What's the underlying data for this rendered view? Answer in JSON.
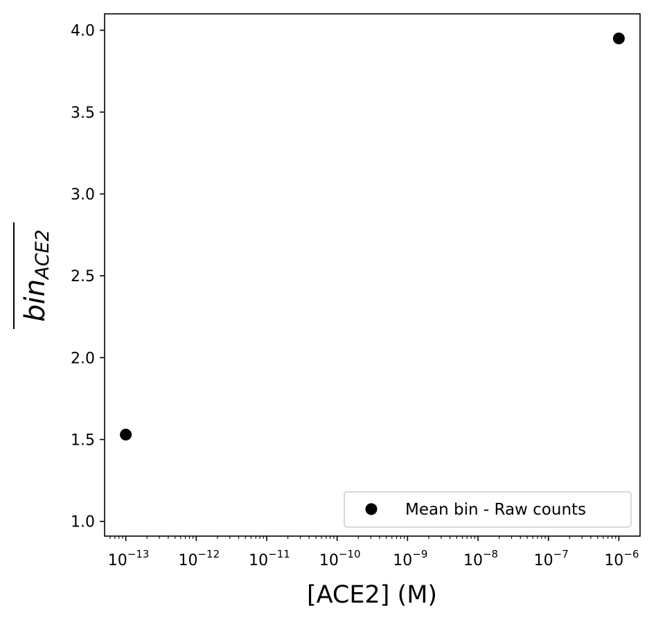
{
  "chart_data": {
    "type": "scatter",
    "title": "",
    "xlabel": "[ACE2] (M)",
    "ylabel": {
      "base": "bin",
      "subscript": "ACE2",
      "overline": true
    },
    "x_scale": "log",
    "x_ticks": [
      {
        "base": "10",
        "exp": "−13",
        "value": 1e-13
      },
      {
        "base": "10",
        "exp": "−12",
        "value": 1e-12
      },
      {
        "base": "10",
        "exp": "−11",
        "value": 1e-11
      },
      {
        "base": "10",
        "exp": "−10",
        "value": 1e-10
      },
      {
        "base": "10",
        "exp": "−9",
        "value": 1e-09
      },
      {
        "base": "10",
        "exp": "−8",
        "value": 1e-08
      },
      {
        "base": "10",
        "exp": "−7",
        "value": 1e-07
      },
      {
        "base": "10",
        "exp": "−6",
        "value": 1e-06
      }
    ],
    "xlim": [
      5e-14,
      2e-06
    ],
    "y_ticks": [
      "1.0",
      "1.5",
      "2.0",
      "2.5",
      "3.0",
      "3.5",
      "4.0"
    ],
    "ylim": [
      0.91,
      4.1
    ],
    "grid": false,
    "legend_position": "lower-right",
    "series": [
      {
        "name": "Mean bin - Raw counts",
        "color": "#000000",
        "marker": "circle",
        "points": [
          {
            "x": 1e-13,
            "y": 1.53
          },
          {
            "x": 1e-06,
            "y": 3.95
          }
        ]
      }
    ]
  }
}
